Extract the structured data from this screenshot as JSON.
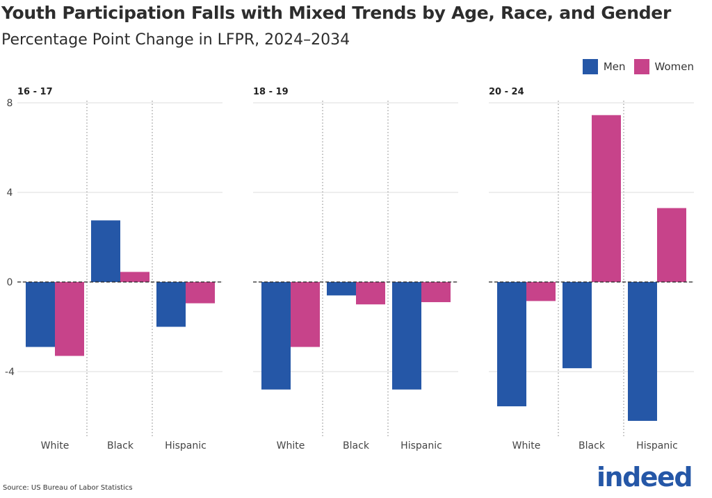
{
  "title": "Youth Participation Falls with Mixed Trends by Age, Race, and Gender",
  "subtitle": "Percentage Point Change in LFPR, 2024–2034",
  "source": "Source: US Bureau of Labor Statistics",
  "logo_text": "indeed",
  "colors": {
    "Men": "#2557a7",
    "Women": "#c7438a"
  },
  "chart_data": {
    "type": "bar",
    "ylim": [
      -6.8,
      8
    ],
    "yticks": [
      8,
      4,
      0,
      -4
    ],
    "grid": true,
    "legend_placement": "top-right",
    "categories": [
      "White",
      "Black",
      "Hispanic"
    ],
    "series_names": [
      "Men",
      "Women"
    ],
    "panels": [
      {
        "title": "16 - 17",
        "series": [
          {
            "name": "Men",
            "values": [
              -2.9,
              2.75,
              -2.0
            ]
          },
          {
            "name": "Women",
            "values": [
              -3.3,
              0.45,
              -0.95
            ]
          }
        ]
      },
      {
        "title": "18 - 19",
        "series": [
          {
            "name": "Men",
            "values": [
              -4.8,
              -0.6,
              -4.8
            ]
          },
          {
            "name": "Women",
            "values": [
              -2.9,
              -1.0,
              -0.9
            ]
          }
        ]
      },
      {
        "title": "20 - 24",
        "series": [
          {
            "name": "Men",
            "values": [
              -5.55,
              -3.85,
              -6.2
            ]
          },
          {
            "name": "Women",
            "values": [
              -0.85,
              7.45,
              3.3
            ]
          }
        ]
      }
    ]
  }
}
